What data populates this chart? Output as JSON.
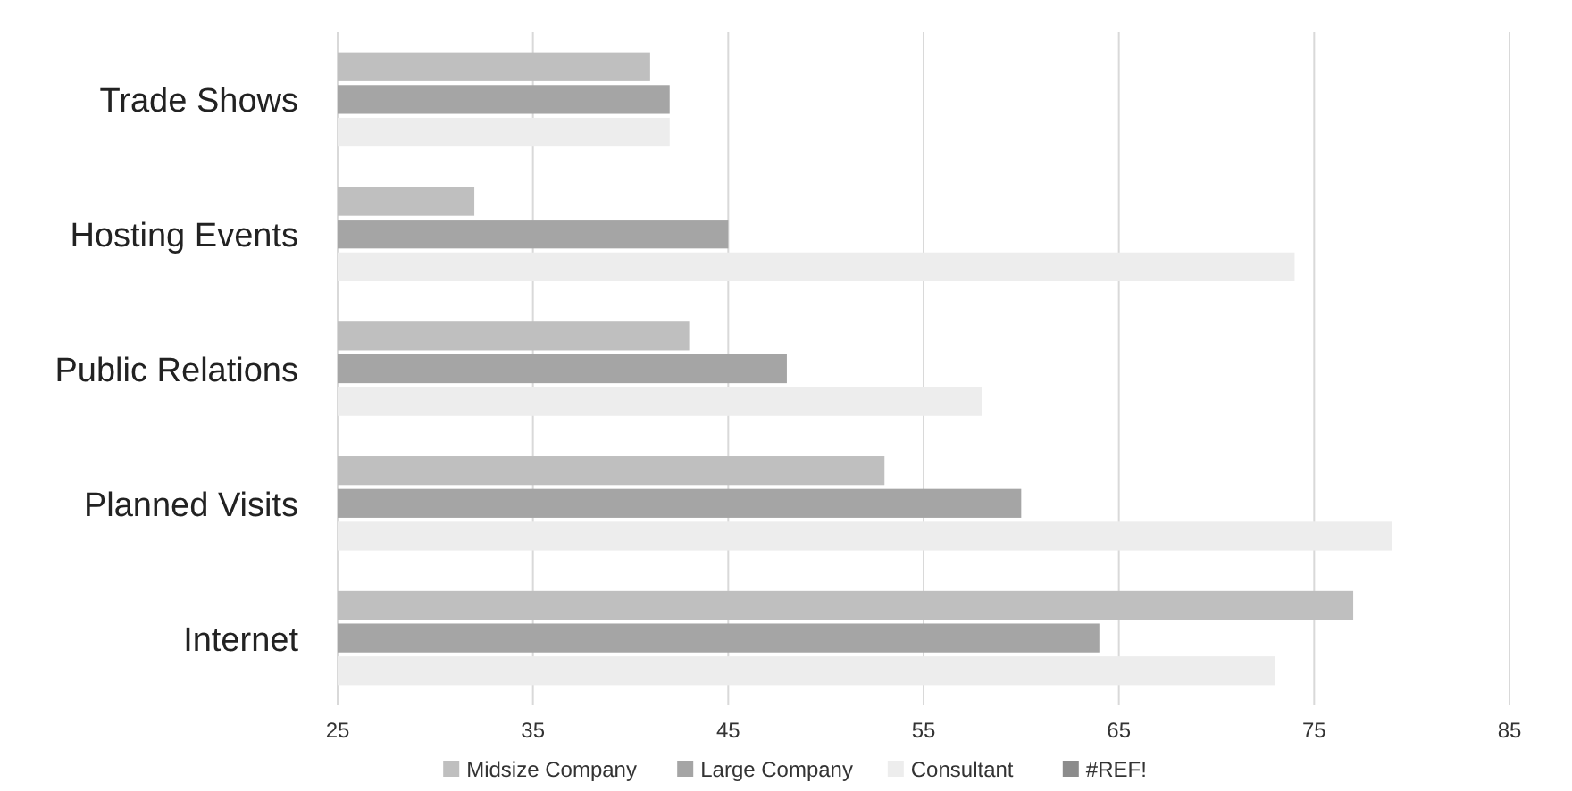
{
  "chart_data": {
    "type": "bar",
    "orientation": "horizontal",
    "categories": [
      "Trade Shows",
      "Hosting Events",
      "Public Relations",
      "Planned Visits",
      "Internet"
    ],
    "series": [
      {
        "name": "Midsize Company",
        "color": "#bfbfbf",
        "values": [
          41,
          32,
          43,
          53,
          77
        ]
      },
      {
        "name": "Large Company",
        "color": "#a5a5a5",
        "values": [
          42,
          45,
          48,
          60,
          64
        ]
      },
      {
        "name": "Consultant",
        "color": "#ededed",
        "values": [
          42,
          74,
          58,
          79,
          73
        ]
      },
      {
        "name": "#REF!",
        "color": "#8c8c8c",
        "values": [
          null,
          null,
          null,
          null,
          null
        ]
      }
    ],
    "xlim": [
      25,
      85
    ],
    "xticks": [
      25,
      35,
      45,
      55,
      65,
      75,
      85
    ],
    "grid": "x",
    "legend": "bottom"
  }
}
